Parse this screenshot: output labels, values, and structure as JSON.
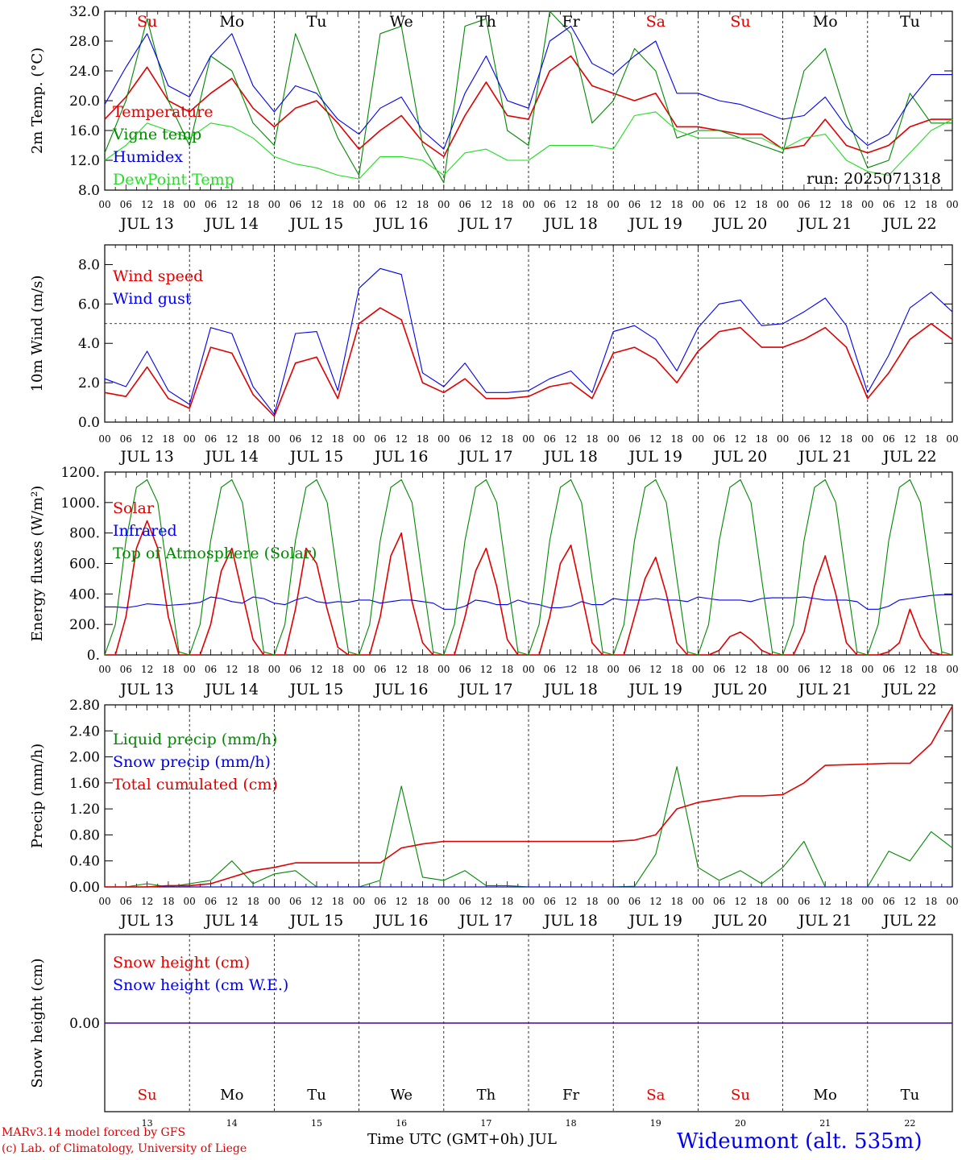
{
  "header_days": [
    {
      "label": "Su",
      "weekend": true
    },
    {
      "label": "Mo",
      "weekend": false
    },
    {
      "label": "Tu",
      "weekend": false
    },
    {
      "label": "We",
      "weekend": false
    },
    {
      "label": "Th",
      "weekend": false
    },
    {
      "label": "Fr",
      "weekend": false
    },
    {
      "label": "Sa",
      "weekend": true
    },
    {
      "label": "Su",
      "weekend": true
    },
    {
      "label": "Mo",
      "weekend": false
    },
    {
      "label": "Tu",
      "weekend": false
    }
  ],
  "date_labels": [
    "JUL 13",
    "JUL 14",
    "JUL 15",
    "JUL 16",
    "JUL 17",
    "JUL 18",
    "JUL 19",
    "JUL 20",
    "JUL 21",
    "JUL 22"
  ],
  "hour_labels": [
    "00",
    "06",
    "12",
    "18"
  ],
  "day_numbers": [
    "13",
    "14",
    "15",
    "16",
    "17",
    "18",
    "19",
    "20",
    "21",
    "22"
  ],
  "colors": {
    "red": "#e00000",
    "green": "#008800",
    "blue": "#0000ee",
    "lightgreen": "#22dd22",
    "black": "#000000"
  },
  "footer": {
    "model_line": "MARv3.14 model forced by GFS",
    "lab_line": "(c) Lab. of Climatology, University of Liege",
    "xlabel": "Time UTC (GMT+0h) JUL",
    "station": "Wideumont (alt. 535m)"
  },
  "chart_data": [
    {
      "type": "line",
      "id": "temperature",
      "ylabel": "2m Temp. (°C)",
      "ylim": [
        8.0,
        32.0
      ],
      "yticks": [
        "8.0",
        "12.0",
        "16.0",
        "20.0",
        "24.0",
        "28.0",
        "32.0"
      ],
      "x_hours": [
        0,
        6,
        12,
        18,
        24,
        30,
        36,
        42,
        48,
        54,
        60,
        66,
        72,
        78,
        84,
        90,
        96,
        102,
        108,
        114,
        120,
        126,
        132,
        138,
        144,
        150,
        156,
        162,
        168,
        174,
        180,
        186,
        192,
        198,
        204,
        210,
        216,
        222,
        228,
        234,
        240
      ],
      "annotation": "run: 2025071318",
      "series": [
        {
          "name": "Temperature",
          "color": "red",
          "values": [
            17.5,
            20.5,
            24.5,
            20,
            18.5,
            21,
            23,
            19,
            16.5,
            19,
            20,
            17,
            13.5,
            16,
            18,
            14.5,
            12.5,
            18,
            22.5,
            18,
            17.5,
            24,
            26,
            22,
            21,
            20,
            21,
            16.5,
            16.5,
            16,
            15.5,
            15.5,
            13.5,
            14,
            17.5,
            14,
            13,
            14,
            16.5,
            17.5,
            17.5
          ]
        },
        {
          "name": "Vigne temp",
          "color": "green",
          "values": [
            13,
            20,
            31,
            20,
            14,
            26,
            24,
            17,
            14,
            29,
            22,
            15,
            10,
            29,
            30,
            14,
            9,
            30,
            31,
            16,
            14,
            32,
            29,
            17,
            20,
            27,
            24,
            15,
            16,
            16,
            15,
            14,
            13,
            24,
            27,
            18,
            11,
            12,
            21,
            17,
            17
          ]
        },
        {
          "name": "Humidex",
          "color": "blue",
          "values": [
            19.5,
            24.5,
            29,
            22,
            20.5,
            26,
            29,
            22,
            18.5,
            22,
            21,
            17.5,
            15.5,
            19,
            20.5,
            16,
            13.5,
            21,
            26,
            20,
            19,
            28,
            30,
            25,
            23.5,
            26,
            28,
            21,
            21,
            20,
            19.5,
            18.5,
            17.5,
            18,
            20.5,
            16.5,
            14,
            15.5,
            20,
            23.5,
            23.5
          ]
        },
        {
          "name": "DewPoint Temp",
          "color": "lightgreen",
          "values": [
            12,
            14,
            17,
            16,
            15,
            17,
            16.5,
            15,
            12.5,
            11.5,
            11,
            10,
            9.5,
            12.5,
            12.5,
            12,
            10,
            13,
            13.5,
            12,
            12,
            14,
            14,
            14,
            13.5,
            18,
            18.5,
            16,
            15,
            15,
            15,
            15,
            13.5,
            15,
            15.5,
            12,
            10.5,
            10,
            13,
            16,
            17.5
          ]
        }
      ]
    },
    {
      "type": "line",
      "id": "wind",
      "ylabel": "10m Wind (m/s)",
      "ylim": [
        0.0,
        9.0
      ],
      "yticks": [
        "0.0",
        "2.0",
        "4.0",
        "6.0",
        "8.0"
      ],
      "reference_line": 5.0,
      "x_hours": [
        0,
        6,
        12,
        18,
        24,
        30,
        36,
        42,
        48,
        54,
        60,
        66,
        72,
        78,
        84,
        90,
        96,
        102,
        108,
        114,
        120,
        126,
        132,
        138,
        144,
        150,
        156,
        162,
        168,
        174,
        180,
        186,
        192,
        198,
        204,
        210,
        216,
        222,
        228,
        234,
        240
      ],
      "series": [
        {
          "name": "Wind speed",
          "color": "red",
          "values": [
            1.5,
            1.3,
            2.8,
            1.2,
            0.7,
            3.8,
            3.5,
            1.4,
            0.3,
            3.0,
            3.3,
            1.2,
            5.0,
            5.8,
            5.2,
            2.0,
            1.5,
            2.2,
            1.2,
            1.2,
            1.3,
            1.8,
            2.0,
            1.2,
            3.5,
            3.8,
            3.2,
            2.0,
            3.6,
            4.6,
            4.8,
            3.8,
            3.8,
            4.2,
            4.8,
            3.8,
            1.2,
            2.5,
            4.2,
            5.0,
            4.2
          ]
        },
        {
          "name": "Wind gust",
          "color": "blue",
          "values": [
            2.2,
            1.8,
            3.6,
            1.6,
            0.9,
            4.8,
            4.5,
            1.8,
            0.4,
            4.5,
            4.6,
            1.6,
            6.8,
            7.8,
            7.5,
            2.5,
            1.8,
            3.0,
            1.5,
            1.5,
            1.6,
            2.2,
            2.6,
            1.5,
            4.6,
            4.9,
            4.2,
            2.6,
            4.8,
            6.0,
            6.2,
            4.9,
            5.0,
            5.6,
            6.3,
            4.9,
            1.5,
            3.4,
            5.8,
            6.6,
            5.6
          ]
        }
      ]
    },
    {
      "type": "line",
      "id": "energy",
      "ylabel": "Energy fluxes (W/m²)",
      "ylim": [
        0,
        1200
      ],
      "yticks": [
        "0.",
        "200.",
        "400.",
        "600.",
        "800.",
        "1000.",
        "1200."
      ],
      "x_hours": [
        0,
        3,
        6,
        9,
        12,
        15,
        18,
        21,
        24,
        27,
        30,
        33,
        36,
        39,
        42,
        45,
        48,
        51,
        54,
        57,
        60,
        63,
        66,
        69,
        72,
        75,
        78,
        81,
        84,
        87,
        90,
        93,
        96,
        99,
        102,
        105,
        108,
        111,
        114,
        117,
        120,
        123,
        126,
        129,
        132,
        135,
        138,
        141,
        144,
        147,
        150,
        153,
        156,
        159,
        162,
        165,
        168,
        171,
        174,
        177,
        180,
        183,
        186,
        189,
        192,
        195,
        198,
        201,
        204,
        207,
        210,
        213,
        216,
        219,
        222,
        225,
        228,
        231,
        234,
        237,
        240
      ],
      "series": [
        {
          "name": "Solar",
          "color": "red",
          "values": [
            0,
            0,
            250,
            700,
            880,
            700,
            250,
            0,
            0,
            0,
            200,
            550,
            700,
            400,
            100,
            0,
            0,
            0,
            300,
            700,
            600,
            300,
            50,
            0,
            0,
            0,
            250,
            650,
            800,
            350,
            80,
            0,
            0,
            0,
            250,
            550,
            700,
            450,
            100,
            0,
            0,
            0,
            250,
            600,
            720,
            400,
            80,
            0,
            0,
            0,
            250,
            500,
            640,
            400,
            80,
            0,
            0,
            0,
            30,
            120,
            150,
            100,
            30,
            0,
            0,
            0,
            150,
            450,
            650,
            400,
            80,
            0,
            0,
            0,
            20,
            80,
            300,
            120,
            20,
            0,
            0
          ]
        },
        {
          "name": "Infrared",
          "color": "blue",
          "values": [
            315,
            315,
            310,
            320,
            335,
            330,
            325,
            330,
            335,
            345,
            380,
            370,
            350,
            340,
            380,
            370,
            340,
            330,
            360,
            380,
            350,
            340,
            350,
            345,
            360,
            360,
            340,
            350,
            360,
            360,
            350,
            340,
            300,
            300,
            320,
            360,
            350,
            330,
            330,
            360,
            340,
            330,
            310,
            310,
            320,
            350,
            330,
            330,
            370,
            360,
            360,
            360,
            370,
            360,
            360,
            350,
            380,
            370,
            360,
            360,
            360,
            350,
            370,
            375,
            375,
            375,
            380,
            370,
            360,
            360,
            360,
            350,
            300,
            300,
            320,
            360,
            370,
            380,
            390,
            395,
            395
          ]
        },
        {
          "name": "Top of Atmosphere (Solar)",
          "color": "green",
          "values": [
            0,
            200,
            750,
            1100,
            1150,
            1000,
            500,
            20,
            0,
            200,
            750,
            1100,
            1150,
            1000,
            500,
            20,
            0,
            200,
            750,
            1100,
            1150,
            1000,
            500,
            20,
            0,
            200,
            750,
            1100,
            1150,
            1000,
            500,
            20,
            0,
            200,
            750,
            1100,
            1150,
            1000,
            500,
            20,
            0,
            200,
            750,
            1100,
            1150,
            1000,
            500,
            20,
            0,
            200,
            750,
            1100,
            1150,
            1000,
            500,
            20,
            0,
            200,
            750,
            1100,
            1150,
            1000,
            500,
            20,
            0,
            200,
            750,
            1100,
            1150,
            1000,
            500,
            20,
            0,
            200,
            750,
            1100,
            1150,
            1000,
            500,
            20,
            0
          ]
        }
      ]
    },
    {
      "type": "line",
      "id": "precip",
      "ylabel": "Precip (mm/h)",
      "ylim": [
        0.0,
        2.8
      ],
      "yticks": [
        "0.00",
        "0.40",
        "0.80",
        "1.20",
        "1.60",
        "2.00",
        "2.40",
        "2.80"
      ],
      "x_hours": [
        0,
        6,
        12,
        18,
        24,
        30,
        36,
        42,
        48,
        54,
        60,
        66,
        72,
        78,
        84,
        90,
        96,
        102,
        108,
        114,
        120,
        126,
        132,
        138,
        144,
        150,
        156,
        162,
        168,
        174,
        180,
        186,
        192,
        198,
        204,
        210,
        216,
        222,
        228,
        234,
        240
      ],
      "series": [
        {
          "name": "Liquid precip (mm/h)",
          "color": "green",
          "values": [
            0,
            0,
            0.05,
            0,
            0.05,
            0.1,
            0.4,
            0.05,
            0.2,
            0.25,
            0,
            0,
            0,
            0.1,
            1.55,
            0.15,
            0.1,
            0.25,
            0.02,
            0.02,
            0,
            0,
            0,
            0,
            0,
            0.01,
            0.5,
            1.85,
            0.3,
            0.1,
            0.25,
            0.05,
            0.3,
            0.7,
            0,
            0,
            0,
            0.55,
            0.4,
            0.85,
            0.6
          ]
        },
        {
          "name": "Snow precip (mm/h)",
          "color": "blue",
          "values": [
            0,
            0,
            0,
            0,
            0,
            0,
            0,
            0,
            0,
            0,
            0,
            0,
            0,
            0,
            0,
            0,
            0,
            0,
            0,
            0,
            0,
            0,
            0,
            0,
            0,
            0,
            0,
            0,
            0,
            0,
            0,
            0,
            0,
            0,
            0,
            0,
            0,
            0,
            0,
            0,
            0
          ]
        },
        {
          "name": "Total cumulated (cm)",
          "color": "red",
          "values": [
            0,
            0,
            0,
            0.02,
            0.02,
            0.05,
            0.15,
            0.25,
            0.3,
            0.37,
            0.37,
            0.37,
            0.37,
            0.37,
            0.6,
            0.66,
            0.7,
            0.7,
            0.7,
            0.7,
            0.7,
            0.7,
            0.7,
            0.7,
            0.7,
            0.72,
            0.8,
            1.2,
            1.3,
            1.35,
            1.4,
            1.4,
            1.42,
            1.6,
            1.87,
            1.88,
            1.89,
            1.9,
            1.9,
            2.2,
            2.78
          ]
        }
      ]
    },
    {
      "type": "line",
      "id": "snow",
      "ylabel": "Snow height (cm)",
      "ylim": [
        -1.0,
        1.0
      ],
      "yticks": [
        "0.00"
      ],
      "x_hours": [
        0,
        240
      ],
      "series": [
        {
          "name": "Snow height (cm)",
          "color": "red",
          "values": [
            0,
            0
          ]
        },
        {
          "name": "Snow height (cm W.E.)",
          "color": "blue",
          "values": [
            0,
            0
          ]
        }
      ]
    }
  ]
}
